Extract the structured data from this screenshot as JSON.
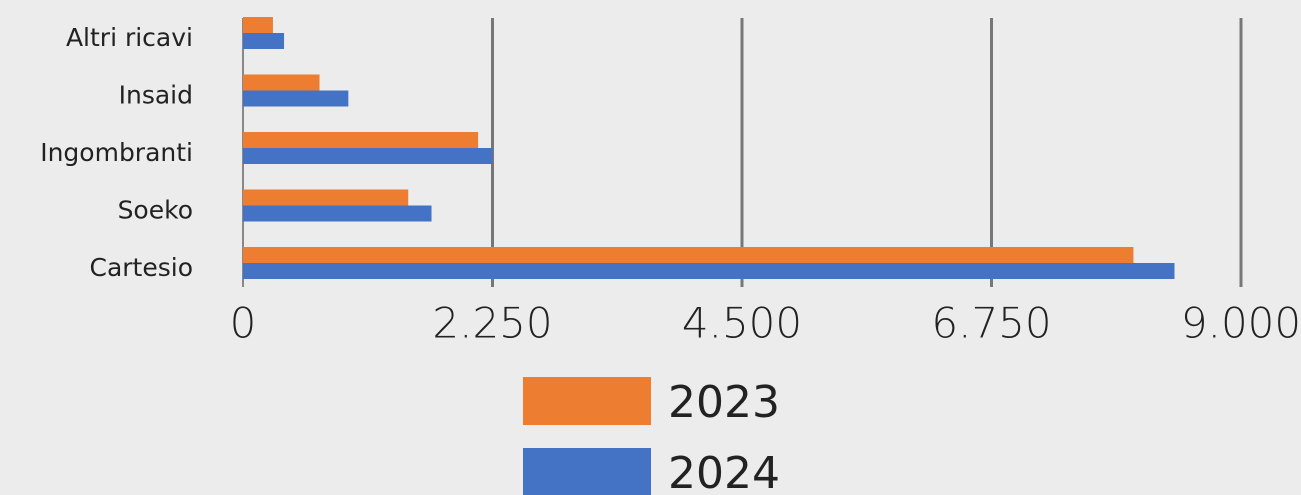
{
  "chart_data": {
    "type": "hbar",
    "categories": [
      "Altri ricavi",
      "Insaid",
      "Ingombranti",
      "Soeko",
      "Cartesio"
    ],
    "series": [
      {
        "name": "2023",
        "color": "#ed7d31",
        "values": [
          270,
          690,
          2120,
          1490,
          8030
        ]
      },
      {
        "name": "2024",
        "color": "#4472c4",
        "values": [
          370,
          950,
          2250,
          1700,
          8400
        ]
      }
    ],
    "xlim": [
      0,
      9000
    ],
    "xticks": [
      0,
      {
        "value": 2250,
        "label": "2.250"
      },
      {
        "value": 4500,
        "label": "4.500"
      },
      {
        "value": 6750,
        "label": "6.750"
      },
      {
        "value": 9000,
        "label": "9.000"
      }
    ],
    "grid": true
  }
}
